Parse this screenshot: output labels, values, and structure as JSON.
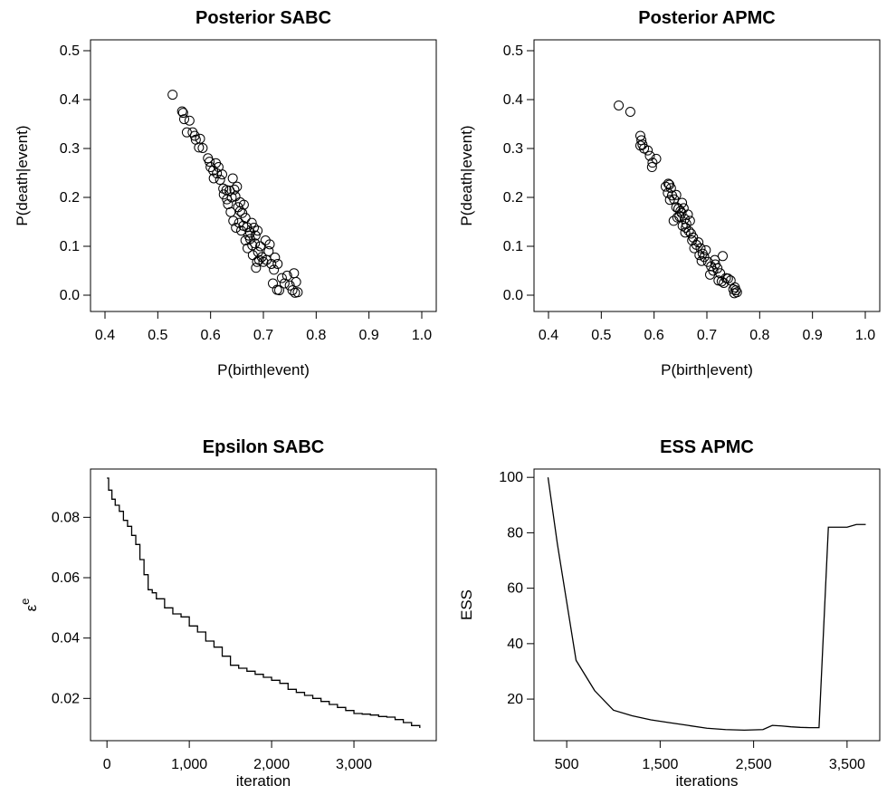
{
  "chart_data": [
    {
      "type": "scatter",
      "title": "Posterior SABC",
      "xlabel": "P(birth|event)",
      "ylabel": "P(death|event)",
      "xlim": [
        0.4,
        1.0
      ],
      "ylim": [
        0.0,
        0.5
      ],
      "xticks": [
        "0.4",
        "0.5",
        "0.6",
        "0.7",
        "0.8",
        "0.9",
        "1.0"
      ],
      "yticks": [
        "0.0",
        "0.1",
        "0.2",
        "0.3",
        "0.4",
        "0.5"
      ],
      "marker": "open-circle",
      "grid": false,
      "points": [
        [
          0.528,
          0.41
        ],
        [
          0.546,
          0.376
        ],
        [
          0.548,
          0.373
        ],
        [
          0.55,
          0.36
        ],
        [
          0.56,
          0.357
        ],
        [
          0.555,
          0.333
        ],
        [
          0.566,
          0.333
        ],
        [
          0.57,
          0.326
        ],
        [
          0.572,
          0.318
        ],
        [
          0.58,
          0.32
        ],
        [
          0.578,
          0.302
        ],
        [
          0.585,
          0.301
        ],
        [
          0.595,
          0.28
        ],
        [
          0.598,
          0.273
        ],
        [
          0.6,
          0.262
        ],
        [
          0.605,
          0.255
        ],
        [
          0.61,
          0.27
        ],
        [
          0.612,
          0.249
        ],
        [
          0.606,
          0.239
        ],
        [
          0.618,
          0.236
        ],
        [
          0.622,
          0.247
        ],
        [
          0.615,
          0.262
        ],
        [
          0.624,
          0.218
        ],
        [
          0.63,
          0.215
        ],
        [
          0.636,
          0.214
        ],
        [
          0.64,
          0.2
        ],
        [
          0.645,
          0.216
        ],
        [
          0.642,
          0.239
        ],
        [
          0.65,
          0.222
        ],
        [
          0.647,
          0.202
        ],
        [
          0.625,
          0.206
        ],
        [
          0.633,
          0.186
        ],
        [
          0.638,
          0.17
        ],
        [
          0.652,
          0.18
        ],
        [
          0.656,
          0.19
        ],
        [
          0.66,
          0.168
        ],
        [
          0.643,
          0.152
        ],
        [
          0.648,
          0.138
        ],
        [
          0.654,
          0.148
        ],
        [
          0.658,
          0.132
        ],
        [
          0.662,
          0.142
        ],
        [
          0.666,
          0.158
        ],
        [
          0.669,
          0.139
        ],
        [
          0.672,
          0.122
        ],
        [
          0.666,
          0.112
        ],
        [
          0.675,
          0.128
        ],
        [
          0.678,
          0.148
        ],
        [
          0.682,
          0.138
        ],
        [
          0.685,
          0.122
        ],
        [
          0.689,
          0.132
        ],
        [
          0.67,
          0.096
        ],
        [
          0.679,
          0.102
        ],
        [
          0.684,
          0.106
        ],
        [
          0.69,
          0.088
        ],
        [
          0.694,
          0.1
        ],
        [
          0.697,
          0.078
        ],
        [
          0.688,
          0.068
        ],
        [
          0.68,
          0.082
        ],
        [
          0.686,
          0.056
        ],
        [
          0.692,
          0.072
        ],
        [
          0.7,
          0.068
        ],
        [
          0.706,
          0.072
        ],
        [
          0.71,
          0.09
        ],
        [
          0.712,
          0.104
        ],
        [
          0.704,
          0.112
        ],
        [
          0.715,
          0.064
        ],
        [
          0.72,
          0.052
        ],
        [
          0.722,
          0.077
        ],
        [
          0.727,
          0.064
        ],
        [
          0.718,
          0.024
        ],
        [
          0.726,
          0.011
        ],
        [
          0.73,
          0.01
        ],
        [
          0.735,
          0.035
        ],
        [
          0.74,
          0.024
        ],
        [
          0.745,
          0.04
        ],
        [
          0.75,
          0.02
        ],
        [
          0.755,
          0.01
        ],
        [
          0.758,
          0.045
        ],
        [
          0.762,
          0.027
        ],
        [
          0.76,
          0.005
        ],
        [
          0.765,
          0.006
        ],
        [
          0.656,
          0.172
        ],
        [
          0.663,
          0.185
        ],
        [
          0.631,
          0.196
        ],
        [
          0.675,
          0.115
        ]
      ]
    },
    {
      "type": "scatter",
      "title": "Posterior APMC",
      "xlabel": "P(birth|event)",
      "ylabel": "P(death|event)",
      "xlim": [
        0.4,
        1.0
      ],
      "ylim": [
        0.0,
        0.5
      ],
      "xticks": [
        "0.4",
        "0.5",
        "0.6",
        "0.7",
        "0.8",
        "0.9",
        "1.0"
      ],
      "yticks": [
        "0.0",
        "0.1",
        "0.2",
        "0.3",
        "0.4",
        "0.5"
      ],
      "marker": "open-circle",
      "grid": false,
      "points": [
        [
          0.533,
          0.388
        ],
        [
          0.555,
          0.375
        ],
        [
          0.574,
          0.326
        ],
        [
          0.576,
          0.317
        ],
        [
          0.578,
          0.308
        ],
        [
          0.581,
          0.3
        ],
        [
          0.574,
          0.306
        ],
        [
          0.588,
          0.296
        ],
        [
          0.592,
          0.285
        ],
        [
          0.597,
          0.271
        ],
        [
          0.604,
          0.279
        ],
        [
          0.596,
          0.262
        ],
        [
          0.622,
          0.222
        ],
        [
          0.627,
          0.228
        ],
        [
          0.629,
          0.226
        ],
        [
          0.632,
          0.219
        ],
        [
          0.626,
          0.209
        ],
        [
          0.634,
          0.204
        ],
        [
          0.638,
          0.196
        ],
        [
          0.642,
          0.18
        ],
        [
          0.646,
          0.177
        ],
        [
          0.65,
          0.172
        ],
        [
          0.653,
          0.189
        ],
        [
          0.656,
          0.178
        ],
        [
          0.648,
          0.161
        ],
        [
          0.652,
          0.168
        ],
        [
          0.637,
          0.152
        ],
        [
          0.644,
          0.159
        ],
        [
          0.658,
          0.156
        ],
        [
          0.661,
          0.146
        ],
        [
          0.664,
          0.165
        ],
        [
          0.668,
          0.152
        ],
        [
          0.654,
          0.142
        ],
        [
          0.659,
          0.128
        ],
        [
          0.666,
          0.131
        ],
        [
          0.67,
          0.126
        ],
        [
          0.674,
          0.118
        ],
        [
          0.68,
          0.103
        ],
        [
          0.684,
          0.108
        ],
        [
          0.676,
          0.096
        ],
        [
          0.688,
          0.096
        ],
        [
          0.692,
          0.085
        ],
        [
          0.686,
          0.082
        ],
        [
          0.695,
          0.078
        ],
        [
          0.698,
          0.092
        ],
        [
          0.702,
          0.068
        ],
        [
          0.708,
          0.059
        ],
        [
          0.712,
          0.05
        ],
        [
          0.706,
          0.042
        ],
        [
          0.716,
          0.063
        ],
        [
          0.72,
          0.055
        ],
        [
          0.725,
          0.045
        ],
        [
          0.73,
          0.08
        ],
        [
          0.722,
          0.03
        ],
        [
          0.728,
          0.028
        ],
        [
          0.732,
          0.025
        ],
        [
          0.736,
          0.035
        ],
        [
          0.74,
          0.034
        ],
        [
          0.745,
          0.03
        ],
        [
          0.75,
          0.012
        ],
        [
          0.753,
          0.016
        ],
        [
          0.755,
          0.01
        ],
        [
          0.757,
          0.006
        ],
        [
          0.752,
          0.004
        ],
        [
          0.69,
          0.07
        ],
        [
          0.63,
          0.195
        ],
        [
          0.642,
          0.205
        ],
        [
          0.66,
          0.138
        ],
        [
          0.672,
          0.112
        ],
        [
          0.715,
          0.072
        ]
      ]
    },
    {
      "type": "line",
      "title": "Epsilon SABC",
      "xlabel": "iteration",
      "ylabel_symbol": "ε",
      "ylabel_superscript": "e",
      "xlim": [
        -200,
        4000
      ],
      "ylim": [
        0.006,
        0.096
      ],
      "xtick_values": [
        0,
        1000,
        2000,
        3000
      ],
      "xticks": [
        "0",
        "1,000",
        "2,000",
        "3,000"
      ],
      "ytick_values": [
        0.02,
        0.04,
        0.06,
        0.08
      ],
      "yticks": [
        "0.02",
        "0.04",
        "0.06",
        "0.08"
      ],
      "grid": false,
      "step": true,
      "x": [
        0,
        20,
        60,
        100,
        150,
        200,
        250,
        300,
        350,
        400,
        450,
        500,
        550,
        600,
        700,
        800,
        900,
        1000,
        1100,
        1200,
        1300,
        1400,
        1500,
        1600,
        1700,
        1800,
        1900,
        2000,
        2100,
        2200,
        2300,
        2400,
        2500,
        2600,
        2700,
        2800,
        2900,
        3000,
        3100,
        3200,
        3300,
        3400,
        3500,
        3600,
        3700,
        3800
      ],
      "y": [
        0.093,
        0.089,
        0.086,
        0.084,
        0.082,
        0.079,
        0.077,
        0.074,
        0.071,
        0.066,
        0.061,
        0.056,
        0.055,
        0.053,
        0.05,
        0.048,
        0.047,
        0.044,
        0.042,
        0.039,
        0.037,
        0.034,
        0.031,
        0.03,
        0.029,
        0.028,
        0.027,
        0.026,
        0.025,
        0.023,
        0.022,
        0.021,
        0.02,
        0.019,
        0.018,
        0.017,
        0.016,
        0.015,
        0.0148,
        0.0145,
        0.014,
        0.0138,
        0.013,
        0.012,
        0.011,
        0.0102
      ]
    },
    {
      "type": "line",
      "title": "ESS APMC",
      "xlabel": "iterations",
      "ylabel": "ESS",
      "xlim": [
        150,
        3850
      ],
      "ylim": [
        5,
        103
      ],
      "xtick_values": [
        500,
        1500,
        2500,
        3500
      ],
      "xticks": [
        "500",
        "1,500",
        "2,500",
        "3,500"
      ],
      "ytick_values": [
        20,
        40,
        60,
        80,
        100
      ],
      "yticks": [
        "20",
        "40",
        "60",
        "80",
        "100"
      ],
      "grid": false,
      "x": [
        300,
        400,
        500,
        600,
        800,
        1000,
        1200,
        1400,
        1600,
        1800,
        2000,
        2200,
        2400,
        2600,
        2700,
        2800,
        2900,
        3000,
        3100,
        3200,
        3300,
        3400,
        3500,
        3600,
        3700
      ],
      "y": [
        100,
        76,
        55,
        34,
        23,
        16,
        14,
        12.5,
        11.5,
        10.5,
        9.5,
        9,
        8.8,
        9,
        10.5,
        10.3,
        10,
        9.8,
        9.7,
        9.7,
        82,
        82,
        82,
        83,
        83
      ]
    }
  ]
}
